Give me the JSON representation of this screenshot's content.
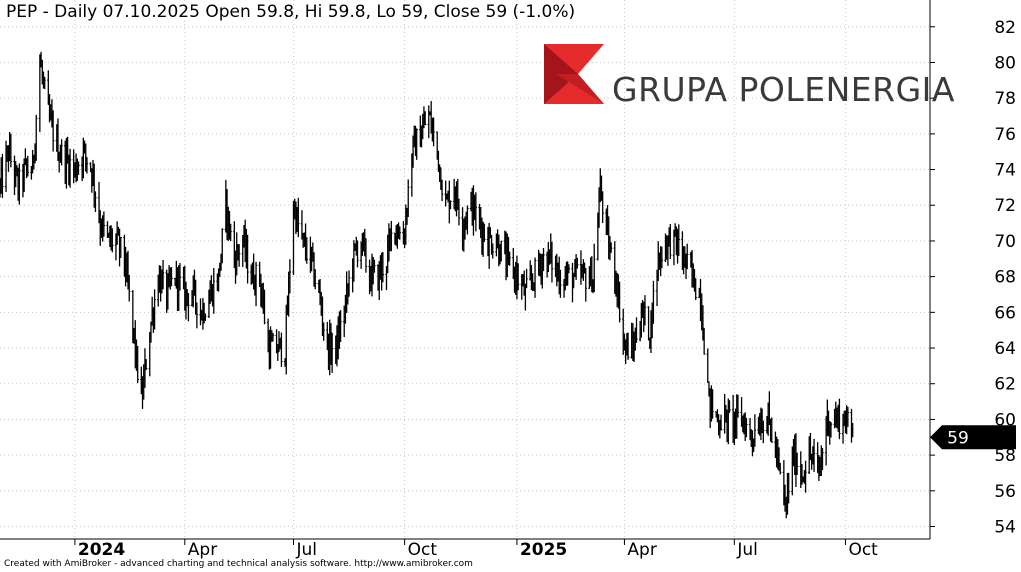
{
  "header": {
    "title": "PEP - Daily 07.10.2025 Open 59.8, Hi 59.8, Lo 59, Close 59 (-1.0%)"
  },
  "logo": {
    "text": "GRUPA POLENERGIA",
    "colors": {
      "red": "#e52b2b",
      "dark_red": "#a3151b",
      "text": "#3a3a3a"
    }
  },
  "footer": {
    "text": "Created with AmiBroker - advanced charting and technical analysis software. http://www.amibroker.com"
  },
  "chart_data": {
    "type": "line",
    "series": [
      {
        "style": "bar",
        "color": "#000000",
        "anchors": [
          [
            "2023-11-01",
            73
          ],
          [
            "2023-11-08",
            75
          ],
          [
            "2023-11-16",
            73
          ],
          [
            "2023-11-22",
            74
          ],
          [
            "2023-11-28",
            74
          ],
          [
            "2023-12-04",
            80
          ],
          [
            "2023-12-11",
            77
          ],
          [
            "2023-12-20",
            75
          ],
          [
            "2024-01-02",
            74
          ],
          [
            "2024-01-09",
            75
          ],
          [
            "2024-01-16",
            74
          ],
          [
            "2024-01-23",
            71
          ],
          [
            "2024-01-29",
            70
          ],
          [
            "2024-02-05",
            70
          ],
          [
            "2024-02-12",
            69
          ],
          [
            "2024-02-19",
            65
          ],
          [
            "2024-02-26",
            61
          ],
          [
            "2024-03-04",
            65
          ],
          [
            "2024-03-11",
            68
          ],
          [
            "2024-03-18",
            67
          ],
          [
            "2024-03-25",
            68
          ],
          [
            "2024-04-02",
            67
          ],
          [
            "2024-04-09",
            67
          ],
          [
            "2024-04-16",
            66
          ],
          [
            "2024-04-23",
            67
          ],
          [
            "2024-04-30",
            68
          ],
          [
            "2024-05-06",
            72
          ],
          [
            "2024-05-13",
            69
          ],
          [
            "2024-05-20",
            70
          ],
          [
            "2024-05-27",
            68
          ],
          [
            "2024-06-03",
            68
          ],
          [
            "2024-06-10",
            64
          ],
          [
            "2024-06-17",
            64
          ],
          [
            "2024-06-24",
            64
          ],
          [
            "2024-07-01",
            72
          ],
          [
            "2024-07-08",
            70
          ],
          [
            "2024-07-15",
            69
          ],
          [
            "2024-07-22",
            67
          ],
          [
            "2024-07-29",
            64
          ],
          [
            "2024-08-05",
            64
          ],
          [
            "2024-08-12",
            66
          ],
          [
            "2024-08-19",
            69
          ],
          [
            "2024-08-26",
            70
          ],
          [
            "2024-09-02",
            68
          ],
          [
            "2024-09-09",
            68
          ],
          [
            "2024-09-16",
            69
          ],
          [
            "2024-09-23",
            71
          ],
          [
            "2024-09-30",
            70
          ],
          [
            "2024-10-07",
            75
          ],
          [
            "2024-10-14",
            76
          ],
          [
            "2024-10-21",
            77
          ],
          [
            "2024-10-28",
            75
          ],
          [
            "2024-11-04",
            72
          ],
          [
            "2024-11-11",
            73
          ],
          [
            "2024-11-18",
            71
          ],
          [
            "2024-11-25",
            72
          ],
          [
            "2024-12-02",
            71
          ],
          [
            "2024-12-09",
            70
          ],
          [
            "2024-12-16",
            70
          ],
          [
            "2024-12-23",
            69
          ],
          [
            "2025-01-02",
            68
          ],
          [
            "2025-01-09",
            67
          ],
          [
            "2025-01-16",
            68
          ],
          [
            "2025-01-23",
            69
          ],
          [
            "2025-01-30",
            69
          ],
          [
            "2025-02-06",
            68
          ],
          [
            "2025-02-13",
            68
          ],
          [
            "2025-02-20",
            68
          ],
          [
            "2025-02-27",
            68
          ],
          [
            "2025-03-06",
            68
          ],
          [
            "2025-03-12",
            73
          ],
          [
            "2025-03-18",
            70
          ],
          [
            "2025-03-25",
            68
          ],
          [
            "2025-04-01",
            64
          ],
          [
            "2025-04-08",
            64
          ],
          [
            "2025-04-15",
            66
          ],
          [
            "2025-04-22",
            65
          ],
          [
            "2025-04-29",
            69
          ],
          [
            "2025-05-06",
            70
          ],
          [
            "2025-05-13",
            70
          ],
          [
            "2025-05-20",
            69
          ],
          [
            "2025-05-27",
            68
          ],
          [
            "2025-06-03",
            67
          ],
          [
            "2025-06-10",
            61
          ],
          [
            "2025-06-17",
            60
          ],
          [
            "2025-06-24",
            60
          ],
          [
            "2025-07-01",
            60
          ],
          [
            "2025-07-08",
            60
          ],
          [
            "2025-07-15",
            59
          ],
          [
            "2025-07-22",
            60
          ],
          [
            "2025-07-29",
            60
          ],
          [
            "2025-08-05",
            58
          ],
          [
            "2025-08-12",
            55
          ],
          [
            "2025-08-19",
            58
          ],
          [
            "2025-08-26",
            57
          ],
          [
            "2025-09-02",
            58
          ],
          [
            "2025-09-09",
            57
          ],
          [
            "2025-09-16",
            60
          ],
          [
            "2025-09-23",
            60
          ],
          [
            "2025-10-01",
            60
          ],
          [
            "2025-10-07",
            59
          ]
        ]
      }
    ],
    "x_ticks": [
      {
        "date": "2024-01-02",
        "label": "2024",
        "major": true
      },
      {
        "date": "2024-04-02",
        "label": "Apr",
        "major": false
      },
      {
        "date": "2024-07-01",
        "label": "Jul",
        "major": false
      },
      {
        "date": "2024-10-01",
        "label": "Oct",
        "major": false
      },
      {
        "date": "2025-01-02",
        "label": "2025",
        "major": true
      },
      {
        "date": "2025-04-01",
        "label": "Apr",
        "major": false
      },
      {
        "date": "2025-07-01",
        "label": "Jul",
        "major": false
      },
      {
        "date": "2025-10-01",
        "label": "Oct",
        "major": false
      }
    ],
    "y_ticks": [
      54,
      56,
      58,
      60,
      62,
      64,
      66,
      68,
      70,
      72,
      74,
      76,
      78,
      80,
      82
    ],
    "xlim": [
      "2023-11-01",
      "2025-12-10"
    ],
    "ylim": [
      53.3,
      83.5
    ],
    "grid": true,
    "last_value": {
      "value": 59,
      "label": "59"
    }
  }
}
